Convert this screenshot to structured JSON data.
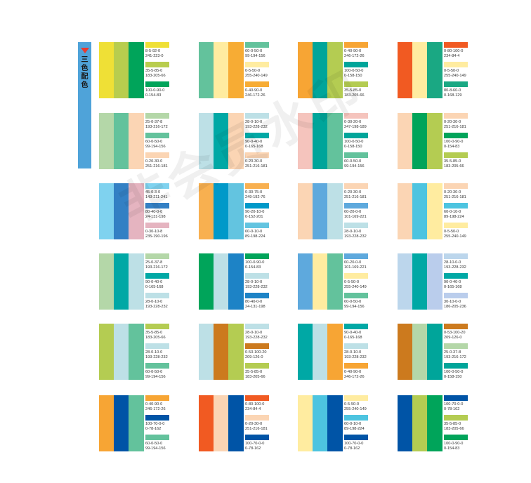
{
  "sidebar": {
    "label": "三色配色",
    "icon": "triangle-down-icon"
  },
  "watermark": "非会员水印",
  "palettes": [
    {
      "colors": [
        "#efe036",
        "#b8cd4e",
        "#00a45a"
      ],
      "codes": [
        "8-5-92-0\n241-223-0",
        "35-5-85-0\n183-205-66",
        "100-0-90-0\n0-154-83"
      ]
    },
    {
      "colors": [
        "#63c29c",
        "#ffeca0",
        "#f7ac34"
      ],
      "codes": [
        "60-0-50-0\n99-194-156",
        "0-5-50-0\n255-240-149",
        "0-40-90-0\n246-172-26"
      ]
    },
    {
      "colors": [
        "#f7a534",
        "#00a59a",
        "#b4cc52"
      ],
      "codes": [
        "0-40-90-0\n246-172-26",
        "100-0-50-0\n0-158-150",
        "35-5-85-0\n183-205-66"
      ]
    },
    {
      "colors": [
        "#f15a22",
        "#ffeca0",
        "#1aa883"
      ],
      "codes": [
        "0-80-100-0\n234-84-4",
        "0-5-50-0\n255-240-149",
        "80-8-60-0\n0-168-129"
      ]
    },
    {
      "colors": [
        "#b4d7a8",
        "#63c29c",
        "#fbd5b4"
      ],
      "codes": [
        "25-0-37-8\n193-216-172",
        "60-0-50-0\n99-194-156",
        "0-20-30-0\n251-216-181"
      ]
    },
    {
      "colors": [
        "#bde0e6",
        "#00a8a5",
        "#fbd5b4"
      ],
      "codes": [
        "28-0-10-0\n193-228-232",
        "90-0-40-0\n0-165-168",
        "0-20-30-0\n251-216-181"
      ]
    },
    {
      "colors": [
        "#f5c4bd",
        "#00a59a",
        "#63c29c"
      ],
      "codes": [
        "0-30-20-0\n247-198-189",
        "100-0-50-0\n0-158-150",
        "60-0-50-0\n99-194-156"
      ]
    },
    {
      "colors": [
        "#fbd5b4",
        "#00a45a",
        "#b4cc52"
      ],
      "codes": [
        "0-20-30-0\n251-216-181",
        "100-0-90-0\n0-154-83",
        "35-5-85-0\n183-205-66"
      ]
    },
    {
      "colors": [
        "#7fd2ef",
        "#3380c4",
        "#e5b4c0"
      ],
      "codes": [
        "45-0-3-0\n143-211-241",
        "80-40-0-0\n24-131-198",
        "0-30-10-8\n235-190-196"
      ]
    },
    {
      "colors": [
        "#f8b050",
        "#0099c9",
        "#63c4e0"
      ],
      "codes": [
        "0-30-75-0\n249-192-76",
        "90-20-10-0\n0-152-201",
        "60-0-10-0\n89-198-224"
      ]
    },
    {
      "colors": [
        "#fbd5b4",
        "#5ea9dd",
        "#bde0e6"
      ],
      "codes": [
        "0-20-30-0\n251-216-181",
        "60-20-0-0\n101-169-221",
        "28-0-10-0\n193-228-232"
      ]
    },
    {
      "colors": [
        "#fbd5b4",
        "#4dc4e0",
        "#ffeca0"
      ],
      "codes": [
        "0-20-30-0\n251-216-181",
        "60-0-10-0\n89-198-224",
        "0-5-50-0\n255-240-149"
      ]
    },
    {
      "colors": [
        "#b4d7a8",
        "#00a8a5",
        "#bde0e6"
      ],
      "codes": [
        "25-0-37-8\n193-216-172",
        "90-0-40-0\n0-165-168",
        "28-0-10-0\n193-228-232"
      ]
    },
    {
      "colors": [
        "#00a45a",
        "#bde0e6",
        "#1d83c6"
      ],
      "codes": [
        "100-0-90-0\n0-154-83",
        "28-0-10-0\n193-228-232",
        "80-40-0-0\n24-131-198"
      ]
    },
    {
      "colors": [
        "#5ea9dd",
        "#ffeca0",
        "#63c29c"
      ],
      "codes": [
        "60-20-0-0\n101-169-221",
        "0-5-50-0\n255-240-149",
        "60-0-50-0\n99-194-156"
      ]
    },
    {
      "colors": [
        "#bcd6ec",
        "#00a8a5",
        "#bacdec"
      ],
      "codes": [
        "28-10-0-0\n193-228-232",
        "90-0-40-0\n0-165-168",
        "30-10-0-0\n186-205-236"
      ]
    },
    {
      "colors": [
        "#b4cc52",
        "#bde0e6",
        "#63c29c"
      ],
      "codes": [
        "35-5-85-0\n183-205-66",
        "28-0-10-0\n193-228-232",
        "60-0-50-0\n99-194-156"
      ]
    },
    {
      "colors": [
        "#bde0e6",
        "#cc7a1e",
        "#b4cc52"
      ],
      "codes": [
        "28-0-10-0\n193-228-232",
        "0-53-100-20\n209-126-0",
        "35-5-85-0\n183-205-66"
      ]
    },
    {
      "colors": [
        "#00a8a5",
        "#bde0e6",
        "#f7a534"
      ],
      "codes": [
        "90-0-40-0\n0-165-168",
        "28-0-10-0\n193-228-232",
        "0-40-90-0\n246-172-26"
      ]
    },
    {
      "colors": [
        "#cc7a1e",
        "#b4d7a8",
        "#00a59a"
      ],
      "codes": [
        "0-53-100-20\n209-126-0",
        "25-0-37-8\n193-216-172",
        "100-0-50-0\n0-158-150"
      ]
    },
    {
      "colors": [
        "#f7a534",
        "#0054a6",
        "#63c29c"
      ],
      "codes": [
        "0-40-90-0\n246-172-26",
        "100-70-0-0\n0-78-162",
        "60-0-50-0\n99-194-156"
      ]
    },
    {
      "colors": [
        "#f15a22",
        "#fbd5b4",
        "#0054a6"
      ],
      "codes": [
        "0-80-100-0\n234-84-4",
        "0-20-30-0\n251-216-181",
        "100-70-0-0\n0-78-162"
      ]
    },
    {
      "colors": [
        "#ffeca0",
        "#4dc4e0",
        "#0054a6"
      ],
      "codes": [
        "0-5-50-0\n255-240-149",
        "60-0-10-0\n89-198-224",
        "100-70-0-0\n0-78-162"
      ]
    },
    {
      "colors": [
        "#0054a6",
        "#b4cc52",
        "#00a45a"
      ],
      "codes": [
        "100-70-0-0\n0-78-162",
        "35-5-85-0\n183-205-66",
        "100-0-90-0\n0-154-83"
      ]
    }
  ]
}
